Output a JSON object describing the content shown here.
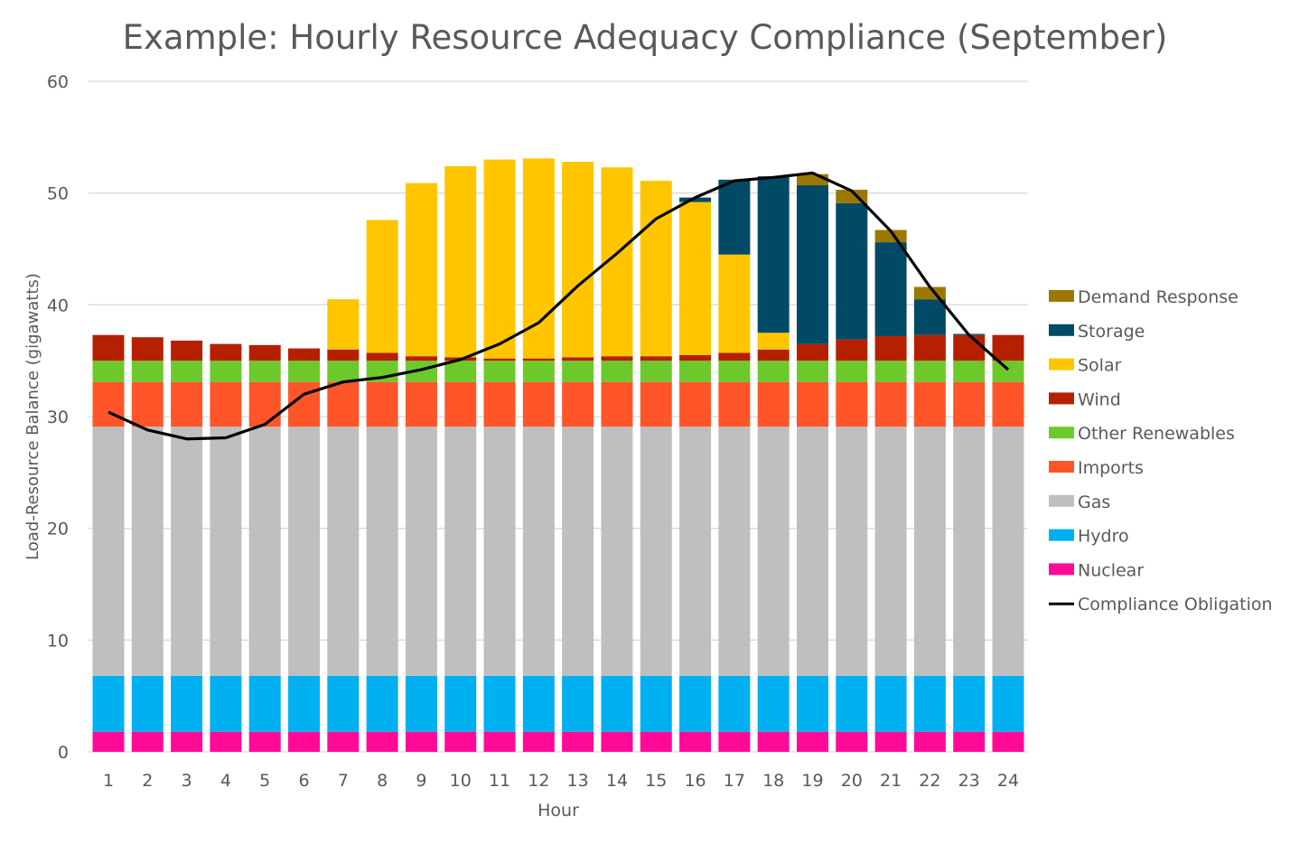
{
  "chart_data": {
    "type": "bar",
    "stacked": true,
    "title": "Example: Hourly Resource Adequacy Compliance (September)",
    "xlabel": "Hour",
    "ylabel": "Load-Resource Balance (gigawatts)",
    "ylim": [
      0,
      60
    ],
    "yticks": [
      0,
      10,
      20,
      30,
      40,
      50,
      60
    ],
    "grid": true,
    "legend_placement": "right",
    "categories": [
      "1",
      "2",
      "3",
      "4",
      "5",
      "6",
      "7",
      "8",
      "9",
      "10",
      "11",
      "12",
      "13",
      "14",
      "15",
      "16",
      "17",
      "18",
      "19",
      "20",
      "21",
      "22",
      "23",
      "24"
    ],
    "series": [
      {
        "name": "Nuclear",
        "color": "#FF0A96",
        "values": [
          1.8,
          1.8,
          1.8,
          1.8,
          1.8,
          1.8,
          1.8,
          1.8,
          1.8,
          1.8,
          1.8,
          1.8,
          1.8,
          1.8,
          1.8,
          1.8,
          1.8,
          1.8,
          1.8,
          1.8,
          1.8,
          1.8,
          1.8,
          1.8
        ]
      },
      {
        "name": "Hydro",
        "color": "#00B0F0",
        "values": [
          5.0,
          5.0,
          5.0,
          5.0,
          5.0,
          5.0,
          5.0,
          5.0,
          5.0,
          5.0,
          5.0,
          5.0,
          5.0,
          5.0,
          5.0,
          5.0,
          5.0,
          5.0,
          5.0,
          5.0,
          5.0,
          5.0,
          5.0,
          5.0
        ]
      },
      {
        "name": "Gas",
        "color": "#BFBFBF",
        "values": [
          22.3,
          22.3,
          22.3,
          22.3,
          22.3,
          22.3,
          22.3,
          22.3,
          22.3,
          22.3,
          22.3,
          22.3,
          22.3,
          22.3,
          22.3,
          22.3,
          22.3,
          22.3,
          22.3,
          22.3,
          22.3,
          22.3,
          22.3,
          22.3
        ]
      },
      {
        "name": "Imports",
        "color": "#FF5529",
        "values": [
          4.0,
          4.0,
          4.0,
          4.0,
          4.0,
          4.0,
          4.0,
          4.0,
          4.0,
          4.0,
          4.0,
          4.0,
          4.0,
          4.0,
          4.0,
          4.0,
          4.0,
          4.0,
          4.0,
          4.0,
          4.0,
          4.0,
          4.0,
          4.0
        ]
      },
      {
        "name": "Other Renewables",
        "color": "#6DC92B",
        "values": [
          1.9,
          1.9,
          1.9,
          1.9,
          1.9,
          1.9,
          1.9,
          1.9,
          1.9,
          1.9,
          1.9,
          1.9,
          1.9,
          1.9,
          1.9,
          1.9,
          1.9,
          1.9,
          1.9,
          1.9,
          1.9,
          1.9,
          1.9,
          1.9
        ]
      },
      {
        "name": "Wind",
        "color": "#B52000",
        "values": [
          2.3,
          2.1,
          1.8,
          1.5,
          1.4,
          1.1,
          1.0,
          0.7,
          0.4,
          0.3,
          0.2,
          0.2,
          0.3,
          0.4,
          0.4,
          0.5,
          0.7,
          1.0,
          1.5,
          1.9,
          2.2,
          2.3,
          2.3,
          2.3
        ]
      },
      {
        "name": "Solar",
        "color": "#FFC600",
        "values": [
          0,
          0,
          0,
          0,
          0,
          0,
          4.5,
          11.9,
          15.5,
          17.1,
          17.8,
          17.9,
          17.5,
          16.9,
          15.7,
          13.7,
          8.8,
          1.5,
          0,
          0,
          0,
          0,
          0,
          0
        ]
      },
      {
        "name": "Storage",
        "color": "#004A66",
        "values": [
          0,
          0,
          0,
          0,
          0,
          0,
          0,
          0,
          0,
          0,
          0,
          0,
          0,
          0,
          0,
          0.4,
          6.7,
          14.0,
          14.2,
          12.2,
          8.4,
          3.2,
          0.1,
          0
        ]
      },
      {
        "name": "Demand Response",
        "color": "#9C7800",
        "values": [
          0,
          0,
          0,
          0,
          0,
          0,
          0,
          0,
          0,
          0,
          0,
          0,
          0,
          0,
          0,
          0,
          0,
          0,
          1.0,
          1.2,
          1.1,
          1.1,
          0,
          0
        ]
      }
    ],
    "line": {
      "name": "Compliance Obligation",
      "color": "#000000",
      "values": [
        30.4,
        28.8,
        28.0,
        28.1,
        29.3,
        32.0,
        33.1,
        33.5,
        34.2,
        35.1,
        36.5,
        38.4,
        41.7,
        44.6,
        47.7,
        49.6,
        51.1,
        51.4,
        51.8,
        50.2,
        46.6,
        41.6,
        37.3,
        34.2
      ]
    }
  }
}
